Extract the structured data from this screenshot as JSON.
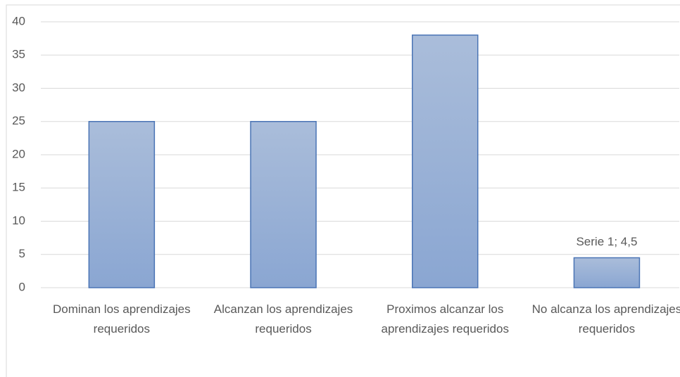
{
  "chart_data": {
    "type": "bar",
    "categories": [
      "Dominan los aprendizajes requeridos",
      "Alcanzan los aprendizajes requeridos",
      "Proximos alcanzar los aprendizajes requeridos",
      "No alcanza los aprendizajes requeridos"
    ],
    "values": [
      25,
      25,
      38,
      4.5
    ],
    "value_labels": [
      null,
      null,
      null,
      "Serie 1; 4,5"
    ],
    "color": "#94aed6",
    "ylim": [
      0,
      40
    ],
    "yticks": [
      0,
      5,
      10,
      15,
      20,
      25,
      30,
      35,
      40
    ],
    "grid": true
  }
}
